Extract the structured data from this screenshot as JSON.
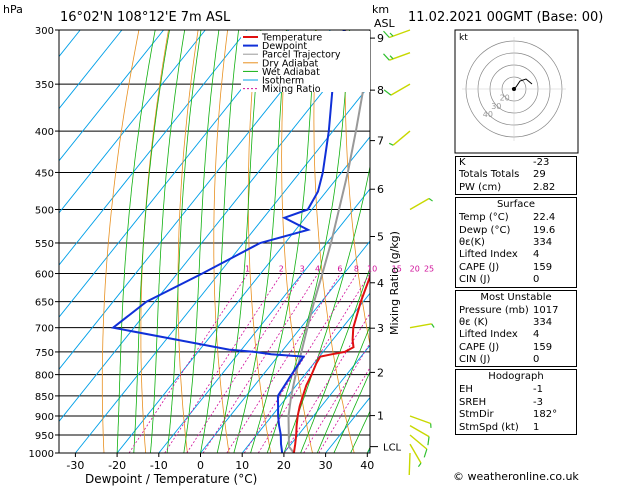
{
  "header": {
    "hpa_unit": "hPa",
    "location": "16°02'N  108°12'E  7m  ASL",
    "km_unit": "km",
    "asl_unit": "ASL",
    "valid_time": "11.02.2021  00GMT  (Base: 00)"
  },
  "chart_data": {
    "type": "skew-t",
    "xlabel": "Dewpoint / Temperature (°C)",
    "ylabel_right": "Mixing Ratio (g/kg)",
    "pressure_ticks": [
      300,
      350,
      400,
      450,
      500,
      550,
      600,
      650,
      700,
      750,
      800,
      850,
      900,
      950,
      1000
    ],
    "temperature_ticks": [
      -30,
      -20,
      -10,
      0,
      10,
      20,
      30,
      40
    ],
    "km_ticks": [
      {
        "label": "9",
        "p": 307
      },
      {
        "label": "8",
        "p": 356
      },
      {
        "label": "7",
        "p": 411
      },
      {
        "label": "6",
        "p": 472
      },
      {
        "label": "5",
        "p": 540
      },
      {
        "label": "4",
        "p": 616
      },
      {
        "label": "3",
        "p": 701
      },
      {
        "label": "2",
        "p": 795
      },
      {
        "label": "1",
        "p": 899
      }
    ],
    "lcl": {
      "label": "LCL",
      "p": 982
    },
    "mixing_ratio_labels": [
      "1",
      "2",
      "3",
      "4",
      "6",
      "8",
      "10",
      "15",
      "20",
      "25"
    ],
    "mixing_ratio_values": [
      1,
      2,
      3,
      4,
      6,
      8,
      10,
      15,
      20,
      25
    ],
    "legend": [
      "Temperature",
      "Dewpoint",
      "Parcel Trajectory",
      "Dry Adiabat",
      "Wet Adiabat",
      "Isotherm",
      "Mixing Ratio"
    ],
    "colors": {
      "temperature": "#e01010",
      "dewpoint": "#1030d8",
      "parcel": "#999999",
      "dry_adiabat": "#e89020",
      "wet_adiabat": "#10b010",
      "isotherm": "#00a0e8",
      "mixing_ratio": "#d0109a"
    },
    "temperature_profile": [
      [
        1000,
        22.4
      ],
      [
        975,
        21.0
      ],
      [
        950,
        19.5
      ],
      [
        925,
        17.8
      ],
      [
        900,
        16.2
      ],
      [
        875,
        14.8
      ],
      [
        850,
        13.6
      ],
      [
        825,
        12.4
      ],
      [
        800,
        11.6
      ],
      [
        775,
        10.6
      ],
      [
        760,
        10.2
      ],
      [
        755,
        12.5
      ],
      [
        750,
        15.2
      ],
      [
        740,
        16.4
      ],
      [
        725,
        14.8
      ],
      [
        700,
        12.6
      ],
      [
        650,
        9.4
      ],
      [
        600,
        6.5
      ],
      [
        550,
        2.5
      ],
      [
        525,
        -0.5
      ],
      [
        500,
        -3.5
      ],
      [
        475,
        -5.5
      ],
      [
        450,
        -8.5
      ],
      [
        425,
        -11.0
      ],
      [
        400,
        -14.8
      ],
      [
        375,
        -18.0
      ],
      [
        350,
        -22.3
      ],
      [
        325,
        -26.0
      ],
      [
        300,
        -31.5
      ]
    ],
    "dewpoint_profile": [
      [
        1000,
        19.6
      ],
      [
        975,
        17.6
      ],
      [
        950,
        15.8
      ],
      [
        925,
        13.6
      ],
      [
        900,
        11.5
      ],
      [
        875,
        9.6
      ],
      [
        850,
        7.6
      ],
      [
        800,
        6.8
      ],
      [
        760,
        6.2
      ],
      [
        755,
        -2.0
      ],
      [
        750,
        -6.5
      ],
      [
        745,
        -13.0
      ],
      [
        725,
        -27.0
      ],
      [
        700,
        -45.0
      ],
      [
        650,
        -42.0
      ],
      [
        600,
        -34.0
      ],
      [
        550,
        -26.0
      ],
      [
        530,
        -17.0
      ],
      [
        512,
        -25.0
      ],
      [
        500,
        -21.0
      ],
      [
        475,
        -22.0
      ],
      [
        450,
        -24.5
      ],
      [
        400,
        -31.0
      ],
      [
        350,
        -39.0
      ],
      [
        320,
        -45.0
      ],
      [
        305,
        -47.0
      ],
      [
        300,
        -46.5
      ]
    ],
    "parcel_profile": [
      [
        1000,
        22.4
      ],
      [
        982,
        20.0
      ],
      [
        900,
        14.0
      ],
      [
        850,
        10.8
      ],
      [
        800,
        7.8
      ],
      [
        750,
        4.8
      ],
      [
        700,
        1.6
      ],
      [
        650,
        -1.8
      ],
      [
        600,
        -5.2
      ],
      [
        550,
        -9.0
      ],
      [
        500,
        -13.5
      ],
      [
        450,
        -18.5
      ],
      [
        400,
        -24.5
      ],
      [
        350,
        -31.5
      ],
      [
        300,
        -40.0
      ]
    ],
    "hodograph": {
      "ring_labels": [
        "40",
        "30",
        "20"
      ],
      "label": "kt"
    },
    "wind_barbs": [
      {
        "p": 1000,
        "dir": 182,
        "spd": 1
      },
      {
        "p": 975,
        "dir": 150,
        "spd": 5
      },
      {
        "p": 950,
        "dir": 130,
        "spd": 10
      },
      {
        "p": 925,
        "dir": 120,
        "spd": 10
      },
      {
        "p": 900,
        "dir": 110,
        "spd": 5
      },
      {
        "p": 700,
        "dir": 80,
        "spd": 5
      },
      {
        "p": 500,
        "dir": 60,
        "spd": 5
      },
      {
        "p": 400,
        "dir": 230,
        "spd": 5
      },
      {
        "p": 350,
        "dir": 240,
        "spd": 10
      },
      {
        "p": 320,
        "dir": 250,
        "spd": 15
      },
      {
        "p": 300,
        "dir": 250,
        "spd": 15
      }
    ]
  },
  "indices": {
    "rows": [
      {
        "label": "K",
        "value": "-23"
      },
      {
        "label": "Totals Totals",
        "value": "29"
      },
      {
        "label": "PW (cm)",
        "value": "2.82"
      }
    ]
  },
  "surface": {
    "title": "Surface",
    "rows": [
      {
        "label": "Temp (°C)",
        "value": "22.4"
      },
      {
        "label": "Dewp (°C)",
        "value": "19.6"
      },
      {
        "label": "θε(K)",
        "value": "334"
      },
      {
        "label": "Lifted Index",
        "value": "4"
      },
      {
        "label": "CAPE (J)",
        "value": "159"
      },
      {
        "label": "CIN (J)",
        "value": "0"
      }
    ]
  },
  "most_unstable": {
    "title": "Most Unstable",
    "rows": [
      {
        "label": "Pressure (mb)",
        "value": "1017"
      },
      {
        "label": "θε (K)",
        "value": "334"
      },
      {
        "label": "Lifted Index",
        "value": "4"
      },
      {
        "label": "CAPE (J)",
        "value": "159"
      },
      {
        "label": "CIN (J)",
        "value": "0"
      }
    ]
  },
  "hodograph_table": {
    "title": "Hodograph",
    "rows": [
      {
        "label": "EH",
        "value": "-1"
      },
      {
        "label": "SREH",
        "value": "-3"
      },
      {
        "label": "StmDir",
        "value": "182°"
      },
      {
        "label": "StmSpd (kt)",
        "value": "1"
      }
    ]
  },
  "credit": "© weatheronline.co.uk"
}
